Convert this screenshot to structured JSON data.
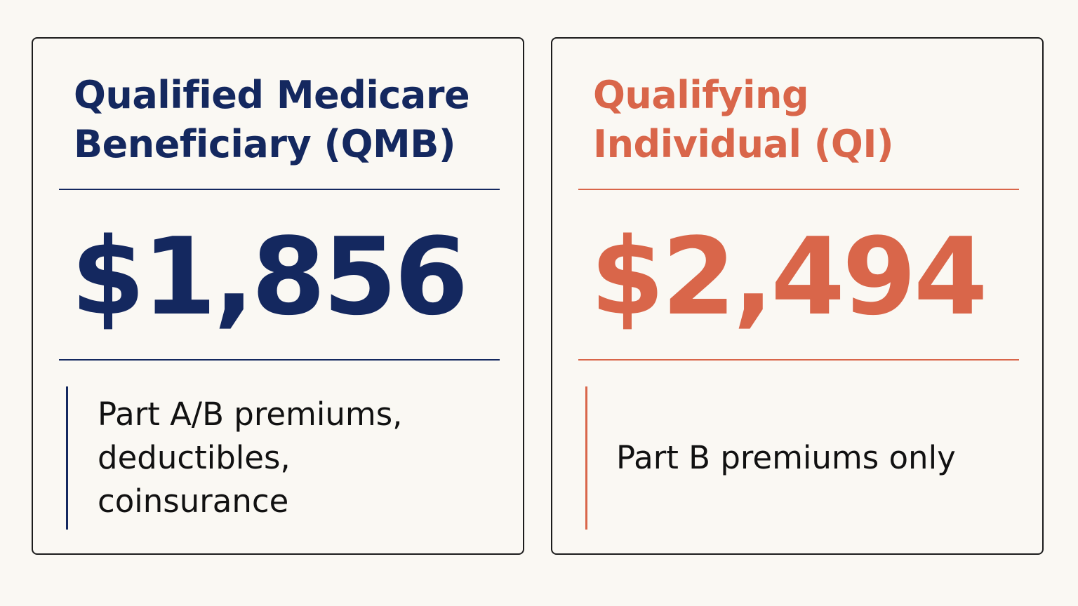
{
  "colors": {
    "navy": "#14285f",
    "coral": "#d9664a",
    "background": "#faf8f3",
    "border": "#1c1c1c",
    "text": "#111111"
  },
  "cards": [
    {
      "title": "Qualified Medicare Beneficiary (QMB)",
      "amount": "$1,856",
      "coverage": "Part A/B premiums, deductibles, coinsurance",
      "accent": "#14285f"
    },
    {
      "title": "Qualifying Individual (QI)",
      "amount": "$2,494",
      "coverage": "Part B premiums only",
      "accent": "#d9664a"
    }
  ]
}
